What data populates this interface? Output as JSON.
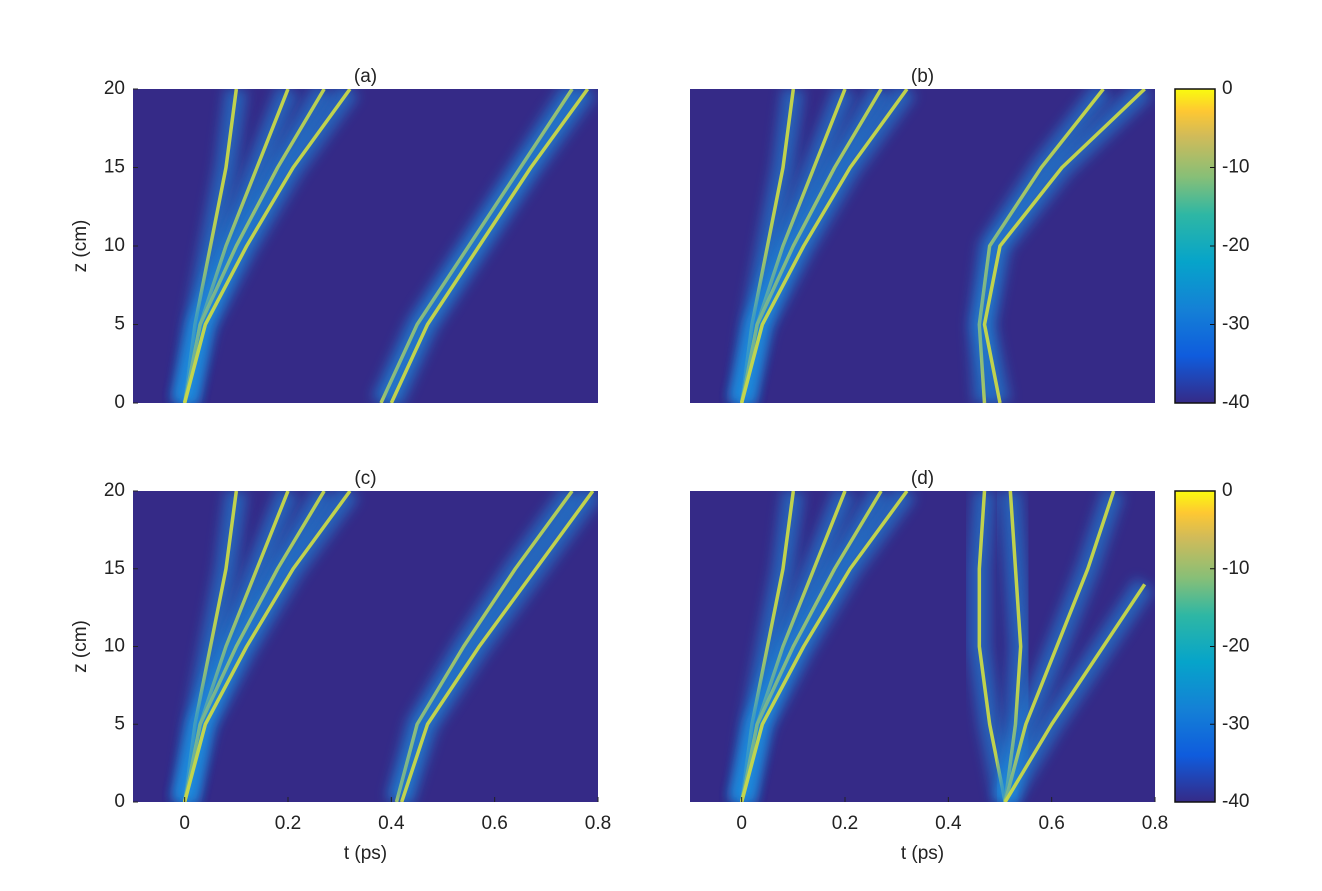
{
  "chart_data": [
    {
      "type": "line",
      "title": "(a)",
      "ylabel": "z (cm)",
      "xlim": [
        -0.1,
        0.8
      ],
      "ylim": [
        0,
        20
      ],
      "yticks": [
        0,
        5,
        10,
        15,
        20
      ],
      "background": "#352a87",
      "line_color": "#c8d848",
      "series": [
        {
          "x": [
            0,
            0.02,
            0.05,
            0.08,
            0.1
          ],
          "values": [
            0,
            5,
            10,
            15,
            20
          ]
        },
        {
          "x": [
            0,
            0.03,
            0.08,
            0.14,
            0.2
          ],
          "values": [
            0,
            5,
            10,
            15,
            20
          ]
        },
        {
          "x": [
            0,
            0.03,
            0.1,
            0.18,
            0.27
          ],
          "values": [
            0,
            5,
            10,
            15,
            20
          ]
        },
        {
          "x": [
            0,
            0.04,
            0.12,
            0.21,
            0.32
          ],
          "values": [
            0,
            5,
            10,
            15,
            20
          ]
        },
        {
          "x": [
            0.38,
            0.45,
            0.55,
            0.65,
            0.75
          ],
          "values": [
            0,
            5,
            10,
            15,
            20
          ]
        },
        {
          "x": [
            0.4,
            0.47,
            0.57,
            0.67,
            0.78
          ],
          "values": [
            0,
            5,
            10,
            15,
            20
          ]
        }
      ]
    },
    {
      "type": "line",
      "title": "(b)",
      "xlim": [
        -0.1,
        0.8
      ],
      "ylim": [
        0,
        20
      ],
      "background": "#352a87",
      "line_color": "#c8d848",
      "colorbar": {
        "lim": [
          -40,
          0
        ],
        "ticks": [
          0,
          -10,
          -20,
          -30,
          -40
        ]
      },
      "series": [
        {
          "x": [
            0,
            0.02,
            0.05,
            0.08,
            0.1
          ],
          "values": [
            0,
            5,
            10,
            15,
            20
          ]
        },
        {
          "x": [
            0,
            0.03,
            0.08,
            0.14,
            0.2
          ],
          "values": [
            0,
            5,
            10,
            15,
            20
          ]
        },
        {
          "x": [
            0,
            0.03,
            0.1,
            0.18,
            0.27
          ],
          "values": [
            0,
            5,
            10,
            15,
            20
          ]
        },
        {
          "x": [
            0,
            0.04,
            0.12,
            0.21,
            0.32
          ],
          "values": [
            0,
            5,
            10,
            15,
            20
          ]
        },
        {
          "x": [
            0.47,
            0.46,
            0.48,
            0.58,
            0.7
          ],
          "values": [
            0,
            5,
            10,
            15,
            20
          ]
        },
        {
          "x": [
            0.5,
            0.47,
            0.5,
            0.62,
            0.78
          ],
          "values": [
            0,
            5,
            10,
            15,
            20
          ]
        }
      ]
    },
    {
      "type": "line",
      "title": "(c)",
      "ylabel": "z (cm)",
      "xlabel": "t (ps)",
      "xlim": [
        -0.1,
        0.8
      ],
      "ylim": [
        0,
        20
      ],
      "xticks": [
        0,
        0.2,
        0.4,
        0.6,
        0.8
      ],
      "yticks": [
        0,
        5,
        10,
        15,
        20
      ],
      "background": "#352a87",
      "line_color": "#c8d848",
      "series": [
        {
          "x": [
            0,
            0.02,
            0.05,
            0.08,
            0.1
          ],
          "values": [
            0,
            5,
            10,
            15,
            20
          ]
        },
        {
          "x": [
            0,
            0.03,
            0.08,
            0.14,
            0.2
          ],
          "values": [
            0,
            5,
            10,
            15,
            20
          ]
        },
        {
          "x": [
            0,
            0.03,
            0.1,
            0.18,
            0.27
          ],
          "values": [
            0,
            5,
            10,
            15,
            20
          ]
        },
        {
          "x": [
            0,
            0.04,
            0.12,
            0.21,
            0.32
          ],
          "values": [
            0,
            5,
            10,
            15,
            20
          ]
        },
        {
          "x": [
            0.41,
            0.45,
            0.54,
            0.64,
            0.75
          ],
          "values": [
            0,
            5,
            10,
            15,
            20
          ]
        },
        {
          "x": [
            0.42,
            0.47,
            0.57,
            0.68,
            0.79
          ],
          "values": [
            0,
            5,
            10,
            15,
            20
          ]
        }
      ]
    },
    {
      "type": "line",
      "title": "(d)",
      "xlabel": "t (ps)",
      "xlim": [
        -0.1,
        0.8
      ],
      "ylim": [
        0,
        20
      ],
      "xticks": [
        0,
        0.2,
        0.4,
        0.6,
        0.8
      ],
      "background": "#352a87",
      "line_color": "#c8d848",
      "colorbar": {
        "lim": [
          -40,
          0
        ],
        "ticks": [
          0,
          -10,
          -20,
          -30,
          -40
        ]
      },
      "series": [
        {
          "x": [
            0,
            0.02,
            0.05,
            0.08,
            0.1
          ],
          "values": [
            0,
            5,
            10,
            15,
            20
          ]
        },
        {
          "x": [
            0,
            0.03,
            0.08,
            0.14,
            0.2
          ],
          "values": [
            0,
            5,
            10,
            15,
            20
          ]
        },
        {
          "x": [
            0,
            0.03,
            0.1,
            0.18,
            0.27
          ],
          "values": [
            0,
            5,
            10,
            15,
            20
          ]
        },
        {
          "x": [
            0,
            0.04,
            0.12,
            0.21,
            0.32
          ],
          "values": [
            0,
            5,
            10,
            15,
            20
          ]
        },
        {
          "x": [
            0.51,
            0.48,
            0.46,
            0.46,
            0.47
          ],
          "values": [
            0,
            5,
            10,
            15,
            20
          ]
        },
        {
          "x": [
            0.51,
            0.53,
            0.54,
            0.53,
            0.52
          ],
          "values": [
            0,
            5,
            10,
            15,
            20
          ]
        },
        {
          "x": [
            0.51,
            0.55,
            0.61,
            0.67,
            0.72
          ],
          "values": [
            0,
            5,
            10,
            15,
            20
          ]
        },
        {
          "x": [
            0.51,
            0.6,
            0.7,
            0.78
          ],
          "values": [
            0,
            5,
            10,
            14
          ]
        }
      ]
    }
  ]
}
